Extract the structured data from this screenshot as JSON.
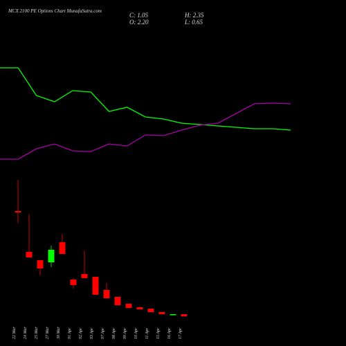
{
  "header": {
    "title": "MCX 2100 PE Options Chart MunafaSutra.com",
    "stats": [
      "C: 1.05",
      "H: 2.35",
      "O: 2.20",
      "L: 0.65"
    ]
  },
  "chart_data": [
    {
      "type": "line",
      "ylim": [
        0,
        26
      ],
      "series": [
        {
          "color": "#00ff00",
          "values": [
            20.2,
            20.2,
            16.2,
            15.3,
            16.9,
            16.7,
            13.9,
            14.5,
            13.1,
            12.8,
            12.2,
            12,
            11.8,
            11.6,
            11.4,
            11.4,
            11.2
          ]
        },
        {
          "color": "#aa00aa",
          "values": [
            7,
            7,
            8.5,
            9.2,
            8.2,
            8.1,
            9.2,
            8.9,
            10.5,
            10.4,
            11.2,
            11.9,
            12.2,
            13.6,
            15,
            15.1,
            15
          ]
        }
      ]
    },
    {
      "type": "candlestick",
      "ylim": [
        0,
        22
      ],
      "up_color": "#00ff00",
      "down_color": "#ff0000",
      "categories": [
        "22 Mar",
        "24 Mar",
        "25 Mar",
        "27 Mar",
        "30 Mar",
        "01 Apr",
        "02 Apr",
        "03 Apr",
        "07 Apr",
        "08 Apr",
        "09 Apr",
        "10 Apr",
        "11 Apr",
        "15 Apr",
        "16 Apr",
        "17 Apr"
      ],
      "open": [
        16.5,
        10.6,
        9.4,
        9.1,
        12,
        6.6,
        7.4,
        7,
        5.1,
        4.1,
        3.1,
        2.6,
        2.4,
        1.9,
        1.5,
        1.6
      ],
      "high": [
        21,
        16,
        9.4,
        11.5,
        13.2,
        6.8,
        10.8,
        7,
        6.1,
        4.1,
        3.1,
        2.7,
        2.4,
        1.9,
        1.6,
        1.6
      ],
      "low": [
        14.8,
        9.8,
        7.2,
        8.4,
        10.3,
        5.3,
        6.8,
        4.4,
        3.9,
        2.9,
        2.5,
        2.3,
        1.9,
        1.6,
        1.5,
        1.3
      ],
      "close": [
        16.3,
        9.8,
        8.2,
        10.9,
        10.3,
        5.8,
        6.8,
        4.4,
        3.9,
        2.9,
        2.5,
        2.3,
        1.9,
        1.6,
        1.6,
        1.3
      ]
    }
  ]
}
